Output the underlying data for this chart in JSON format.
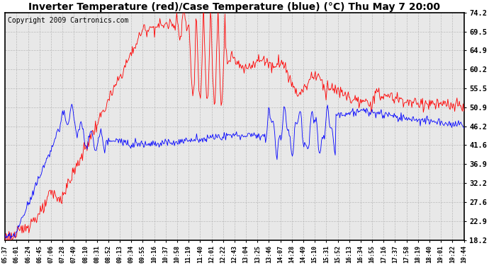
{
  "title": "Inverter Temperature (red)/Case Temperature (blue) (°C) Thu May 7 20:00",
  "copyright": "Copyright 2009 Cartronics.com",
  "yticks": [
    18.2,
    22.9,
    27.6,
    32.2,
    36.9,
    41.6,
    46.2,
    50.9,
    55.5,
    60.2,
    64.9,
    69.5,
    74.2
  ],
  "ymin": 18.2,
  "ymax": 74.2,
  "xtick_labels": [
    "05:37",
    "06:01",
    "06:24",
    "06:45",
    "07:06",
    "07:28",
    "07:49",
    "08:10",
    "08:31",
    "08:52",
    "09:13",
    "09:34",
    "09:55",
    "10:16",
    "10:37",
    "10:58",
    "11:19",
    "11:40",
    "12:01",
    "12:22",
    "12:43",
    "13:04",
    "13:25",
    "13:46",
    "14:07",
    "14:28",
    "14:49",
    "15:10",
    "15:31",
    "15:52",
    "16:13",
    "16:34",
    "16:55",
    "17:16",
    "17:37",
    "17:58",
    "18:19",
    "18:40",
    "19:01",
    "19:22",
    "19:44"
  ],
  "red_color": "#ff0000",
  "blue_color": "#0000ff",
  "bg_color": "#ffffff",
  "plot_bg_color": "#e8e8e8",
  "grid_color": "#bbbbbb",
  "title_fontsize": 10,
  "copyright_fontsize": 7
}
